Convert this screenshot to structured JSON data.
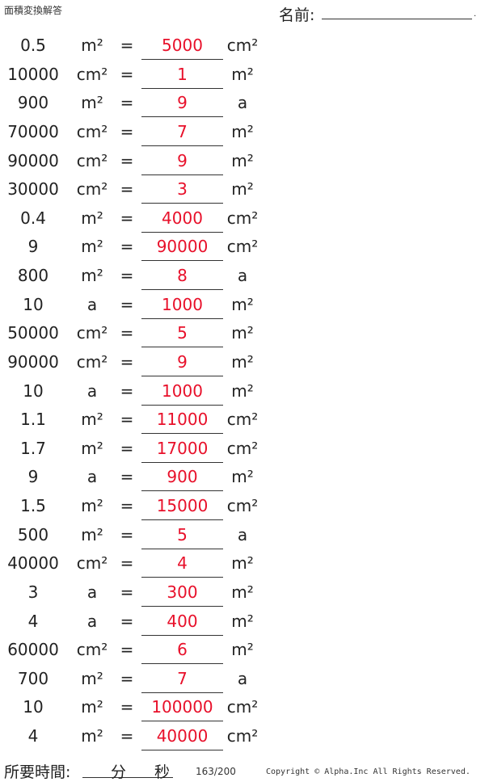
{
  "header": {
    "title": "面積変換解答",
    "name_label": "名前:",
    "name_dot": "."
  },
  "problems": [
    {
      "value": "0.5",
      "from": "m²",
      "answer": "5000",
      "to": "cm²"
    },
    {
      "value": "10000",
      "from": "cm²",
      "answer": "1",
      "to": "m²"
    },
    {
      "value": "900",
      "from": "m²",
      "answer": "9",
      "to": "a"
    },
    {
      "value": "70000",
      "from": "cm²",
      "answer": "7",
      "to": "m²"
    },
    {
      "value": "90000",
      "from": "cm²",
      "answer": "9",
      "to": "m²"
    },
    {
      "value": "30000",
      "from": "cm²",
      "answer": "3",
      "to": "m²"
    },
    {
      "value": "0.4",
      "from": "m²",
      "answer": "4000",
      "to": "cm²"
    },
    {
      "value": "9",
      "from": "m²",
      "answer": "90000",
      "to": "cm²"
    },
    {
      "value": "800",
      "from": "m²",
      "answer": "8",
      "to": "a"
    },
    {
      "value": "10",
      "from": "a",
      "answer": "1000",
      "to": "m²"
    },
    {
      "value": "50000",
      "from": "cm²",
      "answer": "5",
      "to": "m²"
    },
    {
      "value": "90000",
      "from": "cm²",
      "answer": "9",
      "to": "m²"
    },
    {
      "value": "10",
      "from": "a",
      "answer": "1000",
      "to": "m²"
    },
    {
      "value": "1.1",
      "from": "m²",
      "answer": "11000",
      "to": "cm²"
    },
    {
      "value": "1.7",
      "from": "m²",
      "answer": "17000",
      "to": "cm²"
    },
    {
      "value": "9",
      "from": "a",
      "answer": "900",
      "to": "m²"
    },
    {
      "value": "1.5",
      "from": "m²",
      "answer": "15000",
      "to": "cm²"
    },
    {
      "value": "500",
      "from": "m²",
      "answer": "5",
      "to": "a"
    },
    {
      "value": "40000",
      "from": "cm²",
      "answer": "4",
      "to": "m²"
    },
    {
      "value": "3",
      "from": "a",
      "answer": "300",
      "to": "m²"
    },
    {
      "value": "4",
      "from": "a",
      "answer": "400",
      "to": "m²"
    },
    {
      "value": "60000",
      "from": "cm²",
      "answer": "6",
      "to": "m²"
    },
    {
      "value": "700",
      "from": "m²",
      "answer": "7",
      "to": "a"
    },
    {
      "value": "10",
      "from": "m²",
      "answer": "100000",
      "to": "cm²"
    },
    {
      "value": "4",
      "from": "m²",
      "answer": "40000",
      "to": "cm²"
    }
  ],
  "equals": "=",
  "footer": {
    "time_label": "所要時間:",
    "minutes": "分",
    "seconds": "秒",
    "page": "163/200",
    "copyright": "Copyright © Alpha.Inc All Rights Reserved."
  },
  "colors": {
    "answer": "#e8102a",
    "text": "#222222"
  }
}
